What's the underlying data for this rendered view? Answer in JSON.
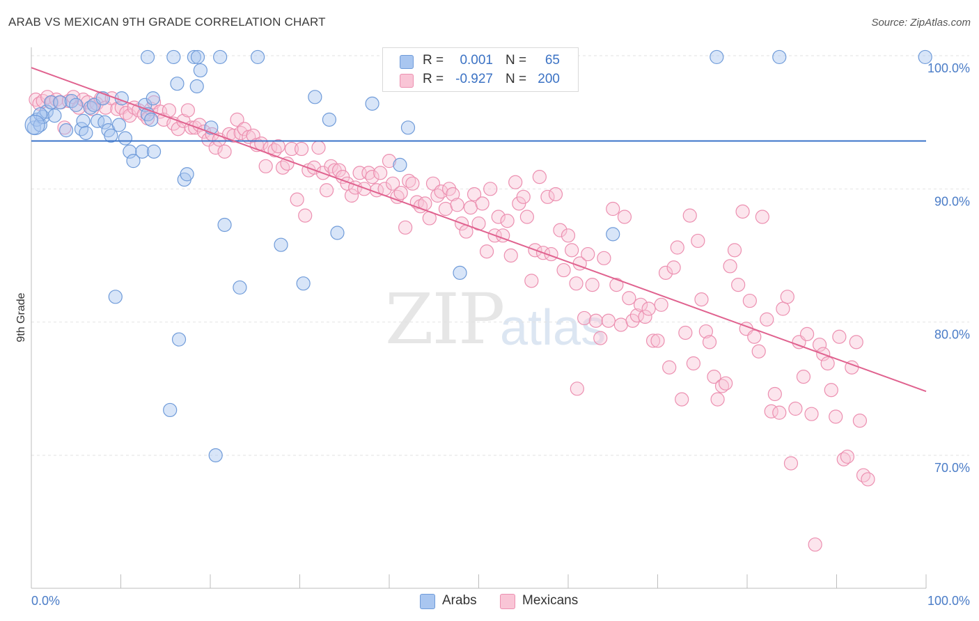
{
  "title": "ARAB VS MEXICAN 9TH GRADE CORRELATION CHART",
  "source": "Source: ZipAtlas.com",
  "watermark": {
    "zip": "ZIP",
    "atlas": "atlas"
  },
  "legend": {
    "rows": [
      {
        "r_label": "R =",
        "r_value": "0.001",
        "n_label": "N =",
        "n_value": "65",
        "color": "#8fb3e8"
      },
      {
        "r_label": "R =",
        "r_value": "-0.927",
        "n_label": "N =",
        "n_value": "200",
        "color": "#f5aac3"
      }
    ]
  },
  "bottom_legend": [
    {
      "label": "Arabs",
      "color": "#8fb3e8"
    },
    {
      "label": "Mexicans",
      "color": "#f5aac3"
    }
  ],
  "colors": {
    "arabs_fill": "#a9c6f0",
    "arabs_stroke": "#6f9bd9",
    "arabs_line": "#3a73c9",
    "mexicans_fill": "#f9c5d6",
    "mexicans_stroke": "#ec8fb0",
    "mexicans_line": "#e0628f",
    "grid": "#e2e2e2",
    "tick_label": "#4a7cc7"
  },
  "chart_data": {
    "type": "scatter",
    "title": "ARAB VS MEXICAN 9TH GRADE CORRELATION CHART",
    "xlabel": "",
    "ylabel": "9th Grade",
    "xlim": [
      0,
      100
    ],
    "ylim": [
      62,
      102
    ],
    "x_tick_labels": [
      "0.0%",
      "100.0%"
    ],
    "y_ticks": [
      70,
      80,
      90,
      100
    ],
    "y_tick_labels": [
      "70.0%",
      "80.0%",
      "90.0%",
      "100.0%"
    ],
    "grid": true,
    "series": [
      {
        "name": "Arabs",
        "trend": {
          "x": [
            0,
            100
          ],
          "y": [
            93.6,
            93.6
          ]
        },
        "points": [
          [
            0.3,
            94.6
          ],
          [
            0.6,
            95.2
          ],
          [
            1.0,
            94.8
          ],
          [
            1.3,
            95.4
          ],
          [
            1.7,
            95.8
          ],
          [
            2.2,
            96.5
          ],
          [
            2.6,
            95.5
          ],
          [
            3.2,
            96.5
          ],
          [
            3.9,
            94.4
          ],
          [
            4.5,
            96.6
          ],
          [
            5.0,
            96.3
          ],
          [
            5.6,
            94.5
          ],
          [
            5.8,
            95.1
          ],
          [
            6.1,
            94.2
          ],
          [
            6.6,
            96.1
          ],
          [
            7.0,
            96.3
          ],
          [
            7.4,
            95.1
          ],
          [
            8.2,
            95.0
          ],
          [
            8.6,
            94.4
          ],
          [
            8.0,
            96.8
          ],
          [
            8.9,
            94.0
          ],
          [
            9.8,
            94.8
          ],
          [
            10.1,
            96.8
          ],
          [
            10.5,
            93.8
          ],
          [
            11.0,
            92.8
          ],
          [
            11.4,
            92.1
          ],
          [
            12.4,
            92.8
          ],
          [
            12.7,
            96.3
          ],
          [
            13.0,
            95.6
          ],
          [
            13.4,
            95.2
          ],
          [
            13.6,
            96.8
          ],
          [
            13.7,
            92.8
          ],
          [
            13.0,
            99.9
          ],
          [
            15.9,
            99.9
          ],
          [
            16.3,
            97.9
          ],
          [
            16.5,
            78.7
          ],
          [
            15.5,
            73.4
          ],
          [
            17.1,
            90.7
          ],
          [
            17.4,
            91.1
          ],
          [
            18.2,
            99.9
          ],
          [
            18.5,
            97.7
          ],
          [
            18.6,
            99.9
          ],
          [
            18.9,
            98.9
          ],
          [
            20.1,
            94.6
          ],
          [
            20.6,
            70.0
          ],
          [
            21.1,
            99.9
          ],
          [
            21.6,
            87.3
          ],
          [
            23.3,
            82.6
          ],
          [
            25.3,
            99.9
          ],
          [
            27.9,
            85.8
          ],
          [
            30.4,
            82.9
          ],
          [
            31.7,
            96.9
          ],
          [
            33.3,
            95.2
          ],
          [
            34.2,
            86.7
          ],
          [
            38.1,
            96.4
          ],
          [
            41.2,
            91.8
          ],
          [
            42.1,
            94.6
          ],
          [
            47.4,
            99.9
          ],
          [
            47.9,
            83.7
          ],
          [
            65.0,
            86.6
          ],
          [
            76.6,
            99.9
          ],
          [
            83.6,
            99.9
          ],
          [
            99.9,
            99.9
          ],
          [
            9.4,
            81.9
          ],
          [
            1.0,
            95.6
          ]
        ]
      },
      {
        "name": "Mexicans",
        "trend": {
          "x": [
            0,
            100
          ],
          "y": [
            99.1,
            74.8
          ]
        },
        "points": [
          [
            0.5,
            96.7
          ],
          [
            0.9,
            96.4
          ],
          [
            1.3,
            96.6
          ],
          [
            1.8,
            96.9
          ],
          [
            2.3,
            96.5
          ],
          [
            2.8,
            96.7
          ],
          [
            3.3,
            96.5
          ],
          [
            3.7,
            94.6
          ],
          [
            4.2,
            96.6
          ],
          [
            4.7,
            96.9
          ],
          [
            5.3,
            96.1
          ],
          [
            5.8,
            96.7
          ],
          [
            6.3,
            96.5
          ],
          [
            6.8,
            96.0
          ],
          [
            7.3,
            96.4
          ],
          [
            7.8,
            96.8
          ],
          [
            8.3,
            96.1
          ],
          [
            9.0,
            96.8
          ],
          [
            9.6,
            96.0
          ],
          [
            10.1,
            96.1
          ],
          [
            10.6,
            95.7
          ],
          [
            11.0,
            95.5
          ],
          [
            11.5,
            96.1
          ],
          [
            12.0,
            95.9
          ],
          [
            12.6,
            95.6
          ],
          [
            13.0,
            95.3
          ],
          [
            13.4,
            96.0
          ],
          [
            13.7,
            96.5
          ],
          [
            14.4,
            95.8
          ],
          [
            14.8,
            95.2
          ],
          [
            15.4,
            95.9
          ],
          [
            15.9,
            94.9
          ],
          [
            16.4,
            94.5
          ],
          [
            17.0,
            95.1
          ],
          [
            17.5,
            95.9
          ],
          [
            17.9,
            94.6
          ],
          [
            18.3,
            94.6
          ],
          [
            18.8,
            94.8
          ],
          [
            19.3,
            94.3
          ],
          [
            19.8,
            93.7
          ],
          [
            20.2,
            94.1
          ],
          [
            20.6,
            93.1
          ],
          [
            21.0,
            93.7
          ],
          [
            21.6,
            92.8
          ],
          [
            22.1,
            94.1
          ],
          [
            22.6,
            94.0
          ],
          [
            23.0,
            95.2
          ],
          [
            23.4,
            94.2
          ],
          [
            23.8,
            94.5
          ],
          [
            24.3,
            93.9
          ],
          [
            24.8,
            94.0
          ],
          [
            25.2,
            93.3
          ],
          [
            25.7,
            93.4
          ],
          [
            26.2,
            91.7
          ],
          [
            26.7,
            93.1
          ],
          [
            27.2,
            92.9
          ],
          [
            27.6,
            93.2
          ],
          [
            28.1,
            91.6
          ],
          [
            28.6,
            91.9
          ],
          [
            29.1,
            93.0
          ],
          [
            29.7,
            89.2
          ],
          [
            30.2,
            93.0
          ],
          [
            30.6,
            88.0
          ],
          [
            31.0,
            91.4
          ],
          [
            31.6,
            91.6
          ],
          [
            32.1,
            93.1
          ],
          [
            32.6,
            91.2
          ],
          [
            33.0,
            89.9
          ],
          [
            33.5,
            91.7
          ],
          [
            33.9,
            91.4
          ],
          [
            34.4,
            91.4
          ],
          [
            34.8,
            90.9
          ],
          [
            35.3,
            90.4
          ],
          [
            35.8,
            89.5
          ],
          [
            36.2,
            90.1
          ],
          [
            36.7,
            91.2
          ],
          [
            37.2,
            90.0
          ],
          [
            37.7,
            91.2
          ],
          [
            38.1,
            90.9
          ],
          [
            38.6,
            89.9
          ],
          [
            39.0,
            91.2
          ],
          [
            39.5,
            90.0
          ],
          [
            40.0,
            92.1
          ],
          [
            40.4,
            90.4
          ],
          [
            40.9,
            89.4
          ],
          [
            41.3,
            89.7
          ],
          [
            41.8,
            87.1
          ],
          [
            42.2,
            90.6
          ],
          [
            42.6,
            90.4
          ],
          [
            43.1,
            89.0
          ],
          [
            43.5,
            88.7
          ],
          [
            44.0,
            88.9
          ],
          [
            44.5,
            87.8
          ],
          [
            44.9,
            90.4
          ],
          [
            45.4,
            89.5
          ],
          [
            45.8,
            89.8
          ],
          [
            46.3,
            88.5
          ],
          [
            46.7,
            90.0
          ],
          [
            47.1,
            89.6
          ],
          [
            47.6,
            88.8
          ],
          [
            48.1,
            87.4
          ],
          [
            48.6,
            86.8
          ],
          [
            49.1,
            88.6
          ],
          [
            49.5,
            89.6
          ],
          [
            50.0,
            87.4
          ],
          [
            50.4,
            88.9
          ],
          [
            50.9,
            85.3
          ],
          [
            51.3,
            90.0
          ],
          [
            51.8,
            86.5
          ],
          [
            52.2,
            87.9
          ],
          [
            52.7,
            86.5
          ],
          [
            53.2,
            87.6
          ],
          [
            53.6,
            85.0
          ],
          [
            54.1,
            90.5
          ],
          [
            54.5,
            88.9
          ],
          [
            55.0,
            89.4
          ],
          [
            55.4,
            87.9
          ],
          [
            55.9,
            83.1
          ],
          [
            56.3,
            85.4
          ],
          [
            56.8,
            90.9
          ],
          [
            57.2,
            85.2
          ],
          [
            57.7,
            89.4
          ],
          [
            58.1,
            85.1
          ],
          [
            58.6,
            89.6
          ],
          [
            59.1,
            86.9
          ],
          [
            59.5,
            83.9
          ],
          [
            60.0,
            86.5
          ],
          [
            60.4,
            85.4
          ],
          [
            60.9,
            82.9
          ],
          [
            61.3,
            84.4
          ],
          [
            61.8,
            80.3
          ],
          [
            62.2,
            85.1
          ],
          [
            62.7,
            82.8
          ],
          [
            63.1,
            80.1
          ],
          [
            63.6,
            78.8
          ],
          [
            64.0,
            84.8
          ],
          [
            64.5,
            80.1
          ],
          [
            65.0,
            88.5
          ],
          [
            65.4,
            82.8
          ],
          [
            65.9,
            79.8
          ],
          [
            66.3,
            87.9
          ],
          [
            66.8,
            81.8
          ],
          [
            67.2,
            80.1
          ],
          [
            67.7,
            80.5
          ],
          [
            68.1,
            81.3
          ],
          [
            68.6,
            80.4
          ],
          [
            69.0,
            81.0
          ],
          [
            69.5,
            78.6
          ],
          [
            70.0,
            78.6
          ],
          [
            70.4,
            81.3
          ],
          [
            70.9,
            83.7
          ],
          [
            71.3,
            76.6
          ],
          [
            71.8,
            84.1
          ],
          [
            72.2,
            85.6
          ],
          [
            72.7,
            74.2
          ],
          [
            73.1,
            79.2
          ],
          [
            73.6,
            88.0
          ],
          [
            74.0,
            76.9
          ],
          [
            74.5,
            86.1
          ],
          [
            74.9,
            81.7
          ],
          [
            75.4,
            79.3
          ],
          [
            75.8,
            78.5
          ],
          [
            76.3,
            75.9
          ],
          [
            76.7,
            74.2
          ],
          [
            77.2,
            75.2
          ],
          [
            77.6,
            75.4
          ],
          [
            78.1,
            84.2
          ],
          [
            78.6,
            85.4
          ],
          [
            79.0,
            82.8
          ],
          [
            79.5,
            88.3
          ],
          [
            79.9,
            79.5
          ],
          [
            80.3,
            81.6
          ],
          [
            80.8,
            78.9
          ],
          [
            81.3,
            77.8
          ],
          [
            81.7,
            87.9
          ],
          [
            82.2,
            80.2
          ],
          [
            82.7,
            73.3
          ],
          [
            83.1,
            74.6
          ],
          [
            83.6,
            73.2
          ],
          [
            84.0,
            81.0
          ],
          [
            84.5,
            81.9
          ],
          [
            84.9,
            69.4
          ],
          [
            85.4,
            73.5
          ],
          [
            85.8,
            78.5
          ],
          [
            86.3,
            75.9
          ],
          [
            86.7,
            79.1
          ],
          [
            87.2,
            73.1
          ],
          [
            87.6,
            63.3
          ],
          [
            88.1,
            78.3
          ],
          [
            88.5,
            77.6
          ],
          [
            89.0,
            76.9
          ],
          [
            89.4,
            74.9
          ],
          [
            89.9,
            72.9
          ],
          [
            90.3,
            78.9
          ],
          [
            90.8,
            69.7
          ],
          [
            91.2,
            69.9
          ],
          [
            91.7,
            76.6
          ],
          [
            92.2,
            78.5
          ],
          [
            92.6,
            72.6
          ],
          [
            93.0,
            68.5
          ],
          [
            93.5,
            68.2
          ],
          [
            61.0,
            75.0
          ]
        ]
      }
    ]
  }
}
